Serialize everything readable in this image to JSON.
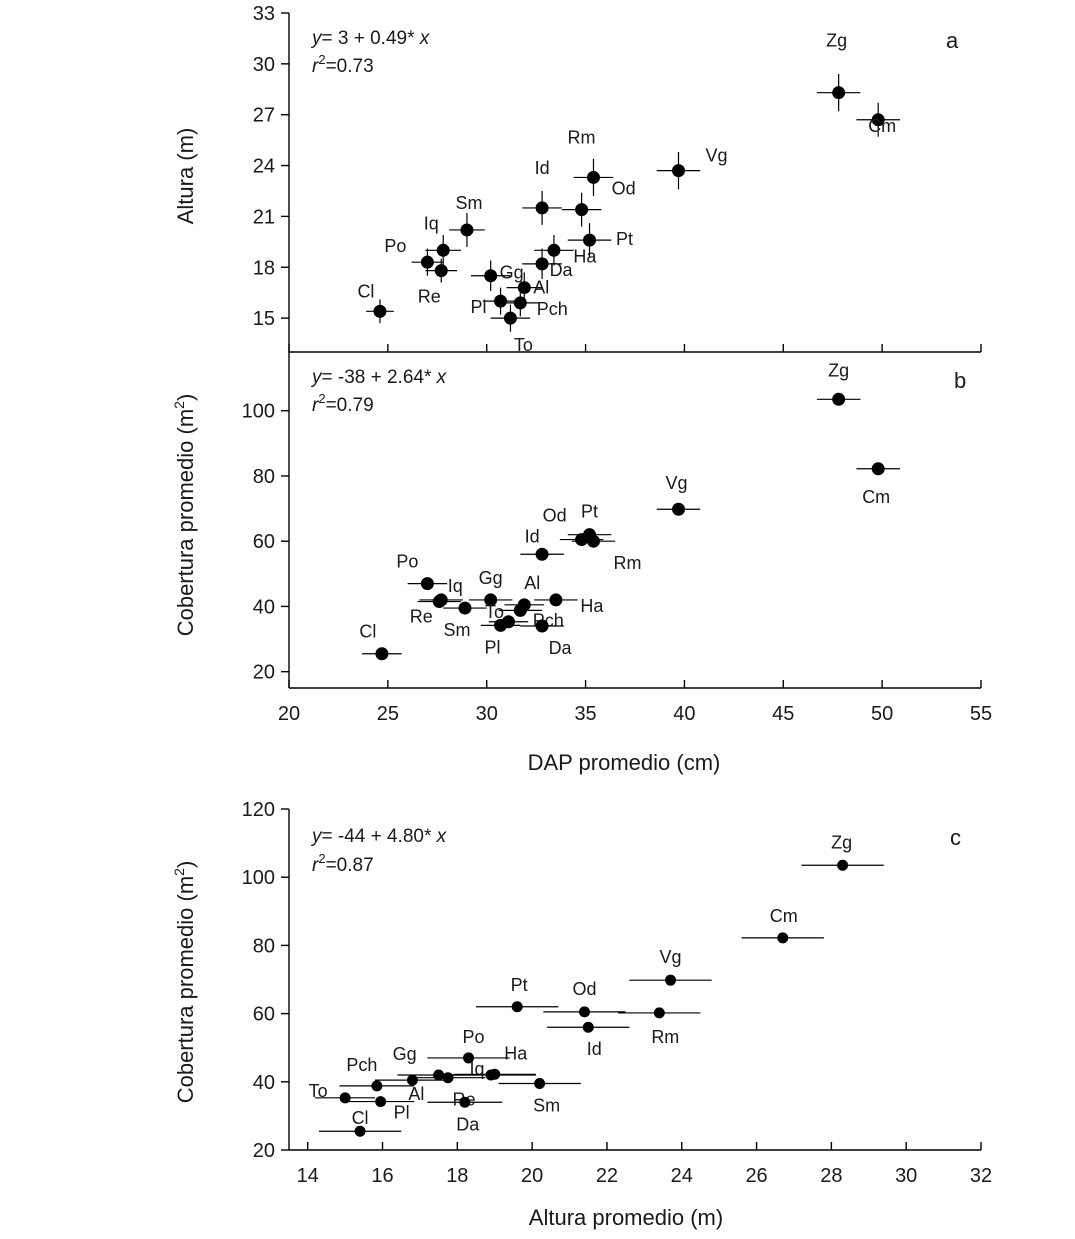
{
  "chart_data": [
    {
      "panel": "a",
      "type": "scatter",
      "ylabel": "Altura (m)",
      "xlabel": "",
      "xlim": [
        20,
        55
      ],
      "ylim": [
        13,
        33
      ],
      "yticks": [
        15,
        18,
        21,
        24,
        27,
        30,
        33
      ],
      "xticks": [
        20,
        25,
        30,
        35,
        40,
        45,
        50,
        55
      ],
      "show_x_tick_labels": false,
      "equation_y": "y",
      "equation_rest": "= 3 + 0.49* ",
      "equation_x": "x",
      "r2_r": "r",
      "r2_exp": "2",
      "r2_rest": "=0.73",
      "points": [
        {
          "label": "Cl",
          "x": 24.6,
          "y": 15.4,
          "xerr": 0.7,
          "yerr": 0.7
        },
        {
          "label": "Po",
          "x": 27.0,
          "y": 18.3,
          "xerr": 0.8,
          "yerr": 0.8
        },
        {
          "label": "Re",
          "x": 27.7,
          "y": 17.8,
          "xerr": 0.8,
          "yerr": 0.7
        },
        {
          "label": "Iq",
          "x": 27.8,
          "y": 19.0,
          "xerr": 0.9,
          "yerr": 0.9
        },
        {
          "label": "Sm",
          "x": 29.0,
          "y": 20.2,
          "xerr": 0.9,
          "yerr": 1.0
        },
        {
          "label": "Gg",
          "x": 30.2,
          "y": 17.5,
          "xerr": 1.0,
          "yerr": 0.9
        },
        {
          "label": "Pl",
          "x": 30.7,
          "y": 16.0,
          "xerr": 0.9,
          "yerr": 0.8
        },
        {
          "label": "To",
          "x": 31.2,
          "y": 15.0,
          "xerr": 1.0,
          "yerr": 0.8
        },
        {
          "label": "Pch",
          "x": 31.7,
          "y": 15.9,
          "xerr": 1.0,
          "yerr": 0.8
        },
        {
          "label": "Al",
          "x": 31.9,
          "y": 16.8,
          "xerr": 0.9,
          "yerr": 0.9
        },
        {
          "label": "Da",
          "x": 32.8,
          "y": 18.2,
          "xerr": 1.0,
          "yerr": 0.9
        },
        {
          "label": "Ha",
          "x": 33.4,
          "y": 19.0,
          "xerr": 1.0,
          "yerr": 0.9
        },
        {
          "label": "Id",
          "x": 32.8,
          "y": 21.5,
          "xerr": 1.0,
          "yerr": 1.0
        },
        {
          "label": "Od",
          "x": 34.8,
          "y": 21.4,
          "xerr": 1.0,
          "yerr": 1.0
        },
        {
          "label": "Pt",
          "x": 35.2,
          "y": 19.6,
          "xerr": 1.1,
          "yerr": 1.0
        },
        {
          "label": "Rm",
          "x": 35.4,
          "y": 23.3,
          "xerr": 1.0,
          "yerr": 1.1
        },
        {
          "label": "Vg",
          "x": 39.7,
          "y": 23.7,
          "xerr": 1.1,
          "yerr": 1.1
        },
        {
          "label": "Zg",
          "x": 47.8,
          "y": 28.3,
          "xerr": 1.1,
          "yerr": 1.1
        },
        {
          "label": "Cm",
          "x": 49.8,
          "y": 26.7,
          "xerr": 1.1,
          "yerr": 1.0
        }
      ]
    },
    {
      "panel": "b",
      "type": "scatter",
      "ylabel_main": "Cobertura promedio (m",
      "ylabel_sup": "2",
      "ylabel_end": ")",
      "xlabel": "DAP promedio (cm)",
      "xlim": [
        20,
        55
      ],
      "ylim": [
        15,
        118
      ],
      "yticks": [
        20,
        40,
        60,
        80,
        100
      ],
      "xticks": [
        20,
        25,
        30,
        35,
        40,
        45,
        50,
        55
      ],
      "show_x_tick_labels": true,
      "equation_y": "y",
      "equation_rest": "= -38 + 2.64* ",
      "equation_x": "x",
      "r2_r": "r",
      "r2_exp": "2",
      "r2_rest": "=0.79",
      "points": [
        {
          "label": "Cl",
          "x": 24.7,
          "y": 25.5,
          "xerr": 1.0
        },
        {
          "label": "Po",
          "x": 27.0,
          "y": 47.0,
          "xerr": 1.0
        },
        {
          "label": "Re",
          "x": 27.6,
          "y": 41.5,
          "xerr": 1.1
        },
        {
          "label": "Iq",
          "x": 27.7,
          "y": 42.0,
          "xerr": 1.1
        },
        {
          "label": "Sm",
          "x": 28.9,
          "y": 39.5,
          "xerr": 1.1
        },
        {
          "label": "Gg",
          "x": 30.2,
          "y": 42.0,
          "xerr": 1.1
        },
        {
          "label": "To",
          "x": 31.1,
          "y": 35.3,
          "xerr": 1.0
        },
        {
          "label": "Pl",
          "x": 30.7,
          "y": 34.2,
          "xerr": 1.0
        },
        {
          "label": "Al",
          "x": 31.9,
          "y": 40.5,
          "xerr": 1.0
        },
        {
          "label": "Pch",
          "x": 31.7,
          "y": 38.8,
          "xerr": 1.1
        },
        {
          "label": "Da",
          "x": 32.8,
          "y": 34.0,
          "xerr": 1.1
        },
        {
          "label": "Ha",
          "x": 33.5,
          "y": 42.0,
          "xerr": 1.1
        },
        {
          "label": "Id",
          "x": 32.8,
          "y": 56.0,
          "xerr": 1.1
        },
        {
          "label": "Od",
          "x": 34.8,
          "y": 60.5,
          "xerr": 1.1
        },
        {
          "label": "Pt",
          "x": 35.2,
          "y": 62.0,
          "xerr": 1.1
        },
        {
          "label": "Rm",
          "x": 35.4,
          "y": 60.0,
          "xerr": 1.1
        },
        {
          "label": "Vg",
          "x": 39.7,
          "y": 69.8,
          "xerr": 1.1
        },
        {
          "label": "Zg",
          "x": 47.8,
          "y": 103.5,
          "xerr": 1.1
        },
        {
          "label": "Cm",
          "x": 49.8,
          "y": 82.2,
          "xerr": 1.1
        }
      ]
    },
    {
      "panel": "c",
      "type": "scatter",
      "ylabel_main": "Cobertura promedio (m",
      "ylabel_sup": "2",
      "ylabel_end": ")",
      "xlabel": "Altura promedio (m)",
      "xlim": [
        13.5,
        32
      ],
      "ylim": [
        20,
        120
      ],
      "yticks": [
        20,
        40,
        60,
        80,
        100,
        120
      ],
      "xticks": [
        14,
        16,
        18,
        20,
        22,
        24,
        26,
        28,
        30,
        32
      ],
      "show_x_tick_labels": true,
      "equation_y": "y",
      "equation_rest": "= -44 + 4.80* ",
      "equation_x": "x",
      "r2_r": "r",
      "r2_exp": "2",
      "r2_rest": "=0.87",
      "points": [
        {
          "label": "To",
          "x": 15.0,
          "y": 35.3,
          "xerr": 0.8
        },
        {
          "label": "Cl",
          "x": 15.4,
          "y": 25.5,
          "xerr": 1.1
        },
        {
          "label": "Pch",
          "x": 15.85,
          "y": 38.8,
          "xerr": 1.0
        },
        {
          "label": "Pl",
          "x": 15.95,
          "y": 34.2,
          "xerr": 0.9
        },
        {
          "label": "Al",
          "x": 16.8,
          "y": 40.5,
          "xerr": 1.0
        },
        {
          "label": "Gg",
          "x": 17.5,
          "y": 42.0,
          "xerr": 1.1
        },
        {
          "label": "Re",
          "x": 17.75,
          "y": 41.2,
          "xerr": 1.0
        },
        {
          "label": "Da",
          "x": 18.2,
          "y": 34.0,
          "xerr": 1.0
        },
        {
          "label": "Po",
          "x": 18.3,
          "y": 47.0,
          "xerr": 1.1
        },
        {
          "label": "Iq",
          "x": 18.9,
          "y": 42.0,
          "xerr": 1.2
        },
        {
          "label": "Ha",
          "x": 19.0,
          "y": 42.2,
          "xerr": 1.1
        },
        {
          "label": "Sm",
          "x": 20.2,
          "y": 39.5,
          "xerr": 1.1
        },
        {
          "label": "Pt",
          "x": 19.6,
          "y": 62.0,
          "xerr": 1.1
        },
        {
          "label": "Id",
          "x": 21.5,
          "y": 56.0,
          "xerr": 1.1
        },
        {
          "label": "Od",
          "x": 21.4,
          "y": 60.5,
          "xerr": 1.1
        },
        {
          "label": "Rm",
          "x": 23.4,
          "y": 60.2,
          "xerr": 1.1
        },
        {
          "label": "Vg",
          "x": 23.7,
          "y": 69.8,
          "xerr": 1.1
        },
        {
          "label": "Cm",
          "x": 26.7,
          "y": 82.2,
          "xerr": 1.1
        },
        {
          "label": "Zg",
          "x": 28.3,
          "y": 103.5,
          "xerr": 1.1
        }
      ]
    }
  ]
}
